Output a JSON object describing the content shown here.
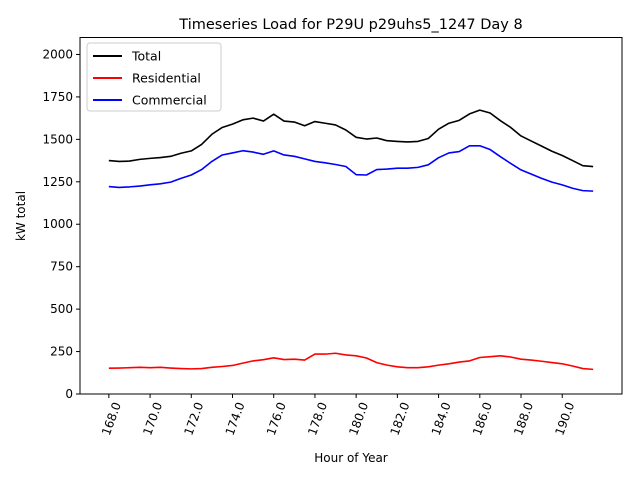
{
  "chart_data": {
    "type": "line",
    "title": "Timeseries Load for P29U p29uhs5_1247  Day 8",
    "xlabel": "Hour of Year",
    "ylabel": "kW total",
    "xlim": [
      166.6,
      192.9
    ],
    "ylim": [
      0,
      2100
    ],
    "grid": false,
    "legend_position": "top-left",
    "x_ticks": [
      168,
      170,
      172,
      174,
      176,
      178,
      180,
      182,
      184,
      186,
      188,
      190
    ],
    "x_tick_labels": [
      "168.0",
      "170.0",
      "172.0",
      "174.0",
      "176.0",
      "178.0",
      "180.0",
      "182.0",
      "184.0",
      "186.0",
      "188.0",
      "190.0"
    ],
    "y_ticks": [
      0,
      250,
      500,
      750,
      1000,
      1250,
      1500,
      1750,
      2000
    ],
    "y_tick_labels": [
      "0",
      "250",
      "500",
      "750",
      "1000",
      "1250",
      "1500",
      "1750",
      "2000"
    ],
    "x": [
      168.0,
      168.5,
      169.0,
      169.5,
      170.0,
      170.5,
      171.0,
      171.5,
      172.0,
      172.5,
      173.0,
      173.5,
      174.0,
      174.5,
      175.0,
      175.5,
      176.0,
      176.5,
      177.0,
      177.5,
      178.0,
      178.5,
      179.0,
      179.5,
      180.0,
      180.5,
      181.0,
      181.5,
      182.0,
      182.5,
      183.0,
      183.5,
      184.0,
      184.5,
      185.0,
      185.5,
      186.0,
      186.5,
      187.0,
      187.5,
      188.0,
      188.5,
      189.0,
      189.5,
      190.0,
      190.5,
      191.0,
      191.5
    ],
    "series": [
      {
        "name": "Total",
        "color": "#000000",
        "values": [
          1375,
          1370,
          1372,
          1382,
          1388,
          1393,
          1400,
          1418,
          1432,
          1470,
          1530,
          1570,
          1590,
          1615,
          1625,
          1608,
          1648,
          1608,
          1602,
          1580,
          1605,
          1595,
          1585,
          1555,
          1512,
          1502,
          1508,
          1492,
          1488,
          1485,
          1488,
          1505,
          1560,
          1595,
          1612,
          1650,
          1672,
          1655,
          1610,
          1570,
          1520,
          1490,
          1460,
          1430,
          1405,
          1375,
          1345,
          1340
        ]
      },
      {
        "name": "Residential",
        "color": "#ff0000",
        "values": [
          152,
          153,
          155,
          157,
          155,
          157,
          153,
          150,
          148,
          150,
          157,
          162,
          168,
          182,
          195,
          202,
          213,
          203,
          205,
          200,
          235,
          235,
          240,
          230,
          225,
          212,
          185,
          170,
          160,
          155,
          155,
          160,
          170,
          178,
          188,
          195,
          215,
          220,
          225,
          218,
          205,
          200,
          193,
          185,
          178,
          165,
          150,
          145
        ]
      },
      {
        "name": "Commercial",
        "color": "#0000ff",
        "values": [
          1222,
          1217,
          1220,
          1225,
          1232,
          1238,
          1248,
          1270,
          1290,
          1322,
          1370,
          1408,
          1420,
          1433,
          1425,
          1412,
          1432,
          1408,
          1400,
          1385,
          1370,
          1362,
          1352,
          1340,
          1292,
          1290,
          1322,
          1325,
          1330,
          1330,
          1335,
          1350,
          1392,
          1420,
          1428,
          1462,
          1462,
          1440,
          1398,
          1358,
          1320,
          1295,
          1270,
          1248,
          1232,
          1212,
          1198,
          1195
        ]
      }
    ]
  }
}
